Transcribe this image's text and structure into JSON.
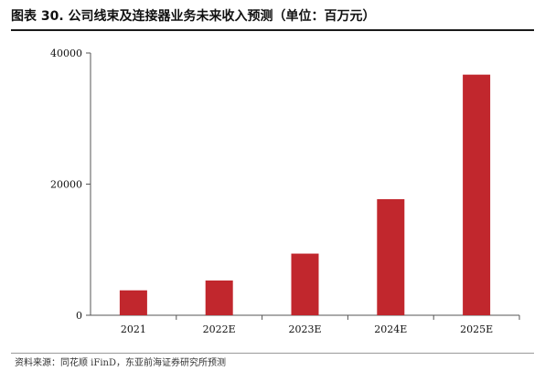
{
  "figure": {
    "title": "图表 30. 公司线束及连接器业务未来收入预测（单位：百万元）",
    "source": "资料来源：同花顺 iFinD，东亚前海证券研究所预测"
  },
  "colors": {
    "bar": "#c1272d",
    "axis": "#555555",
    "text": "#111111"
  },
  "chart_data": {
    "type": "bar",
    "categories": [
      "2021",
      "2022E",
      "2023E",
      "2024E",
      "2025E"
    ],
    "values": [
      3800,
      5300,
      9400,
      17700,
      36700
    ],
    "ylim": [
      0,
      40000
    ],
    "yticks": [
      0,
      20000,
      40000
    ],
    "xlabel": "",
    "ylabel": "",
    "grid": false,
    "legend": "none"
  }
}
